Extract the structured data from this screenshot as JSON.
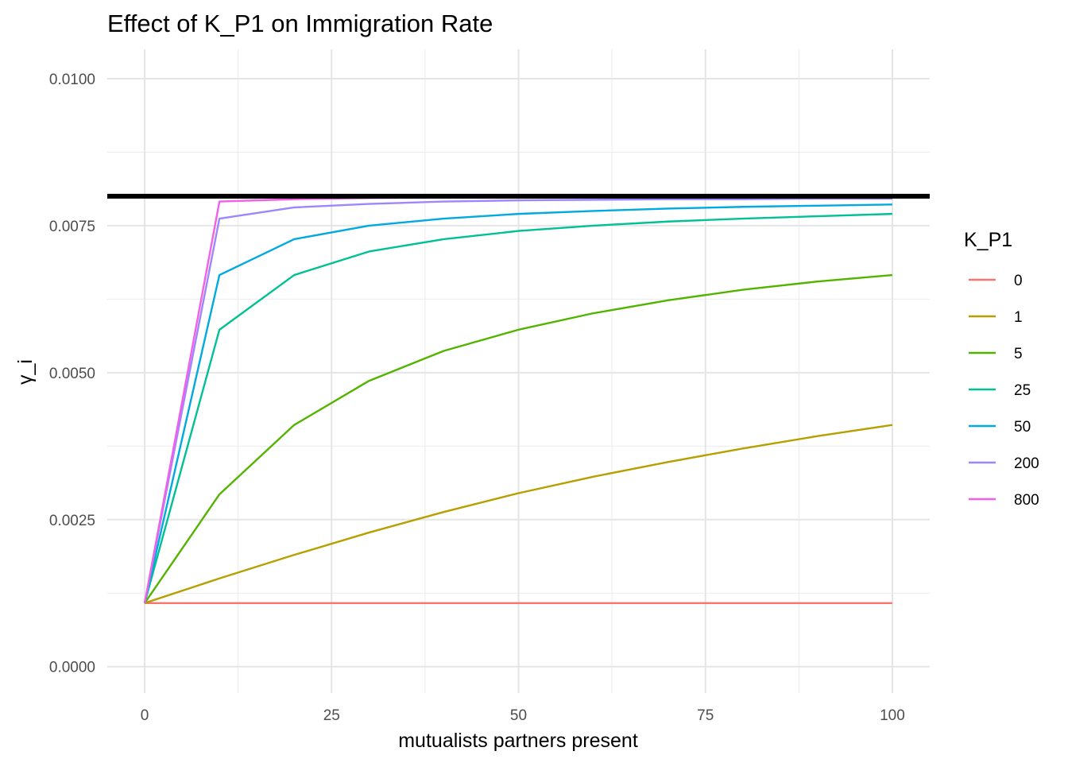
{
  "chart_data": {
    "type": "line",
    "title": "Effect of K_P1 on Immigration Rate",
    "xlabel": "mutualists partners present",
    "ylabel": "γ_i",
    "xlim": [
      -5,
      105
    ],
    "ylim": [
      -0.00045,
      0.0105
    ],
    "x_ticks": [
      0,
      25,
      50,
      75,
      100
    ],
    "x_tick_labels": [
      "0",
      "25",
      "50",
      "75",
      "100"
    ],
    "y_ticks": [
      0,
      0.0025,
      0.005,
      0.0075,
      0.01
    ],
    "y_tick_labels": [
      "0.0000",
      "0.0025",
      "0.0050",
      "0.0075",
      "0.0100"
    ],
    "grid": true,
    "legend_position": "right",
    "legend_title": "K_P1",
    "hline": {
      "y": 0.008,
      "color": "#000000"
    },
    "x": [
      0,
      10,
      20,
      30,
      40,
      50,
      60,
      70,
      80,
      90,
      100
    ],
    "series": [
      {
        "name": "0",
        "color": "#F8766D",
        "values": [
          0.00108,
          0.00108,
          0.00108,
          0.00108,
          0.00108,
          0.00108,
          0.00108,
          0.00108,
          0.00108,
          0.00108,
          0.00108
        ]
      },
      {
        "name": "1",
        "color": "#B79F00",
        "values": [
          0.00108,
          0.0015,
          0.0019,
          0.00228,
          0.00263,
          0.00295,
          0.00323,
          0.00348,
          0.00371,
          0.00392,
          0.00411
        ]
      },
      {
        "name": "5",
        "color": "#53B400",
        "values": [
          0.00108,
          0.00293,
          0.00411,
          0.00486,
          0.00537,
          0.00573,
          0.00601,
          0.00623,
          0.00641,
          0.00655,
          0.00666
        ]
      },
      {
        "name": "25",
        "color": "#00C094",
        "values": [
          0.00108,
          0.00573,
          0.00666,
          0.00706,
          0.00727,
          0.00741,
          0.0075,
          0.00757,
          0.00762,
          0.00766,
          0.0077
        ]
      },
      {
        "name": "50",
        "color": "#00A9E0",
        "values": [
          0.00108,
          0.00666,
          0.00727,
          0.0075,
          0.00762,
          0.0077,
          0.00775,
          0.00779,
          0.00782,
          0.00784,
          0.00786
        ]
      },
      {
        "name": "200",
        "color": "#9E86FF",
        "values": [
          0.00108,
          0.00762,
          0.00781,
          0.00787,
          0.00791,
          0.00793,
          0.00794,
          0.00795,
          0.00795,
          0.00796,
          0.00796
        ]
      },
      {
        "name": "800",
        "color": "#F35FE6",
        "values": [
          0.00108,
          0.00791,
          0.00795,
          0.00797,
          0.00798,
          0.00798,
          0.00799,
          0.00799,
          0.00799,
          0.00799,
          0.00799
        ]
      }
    ]
  }
}
